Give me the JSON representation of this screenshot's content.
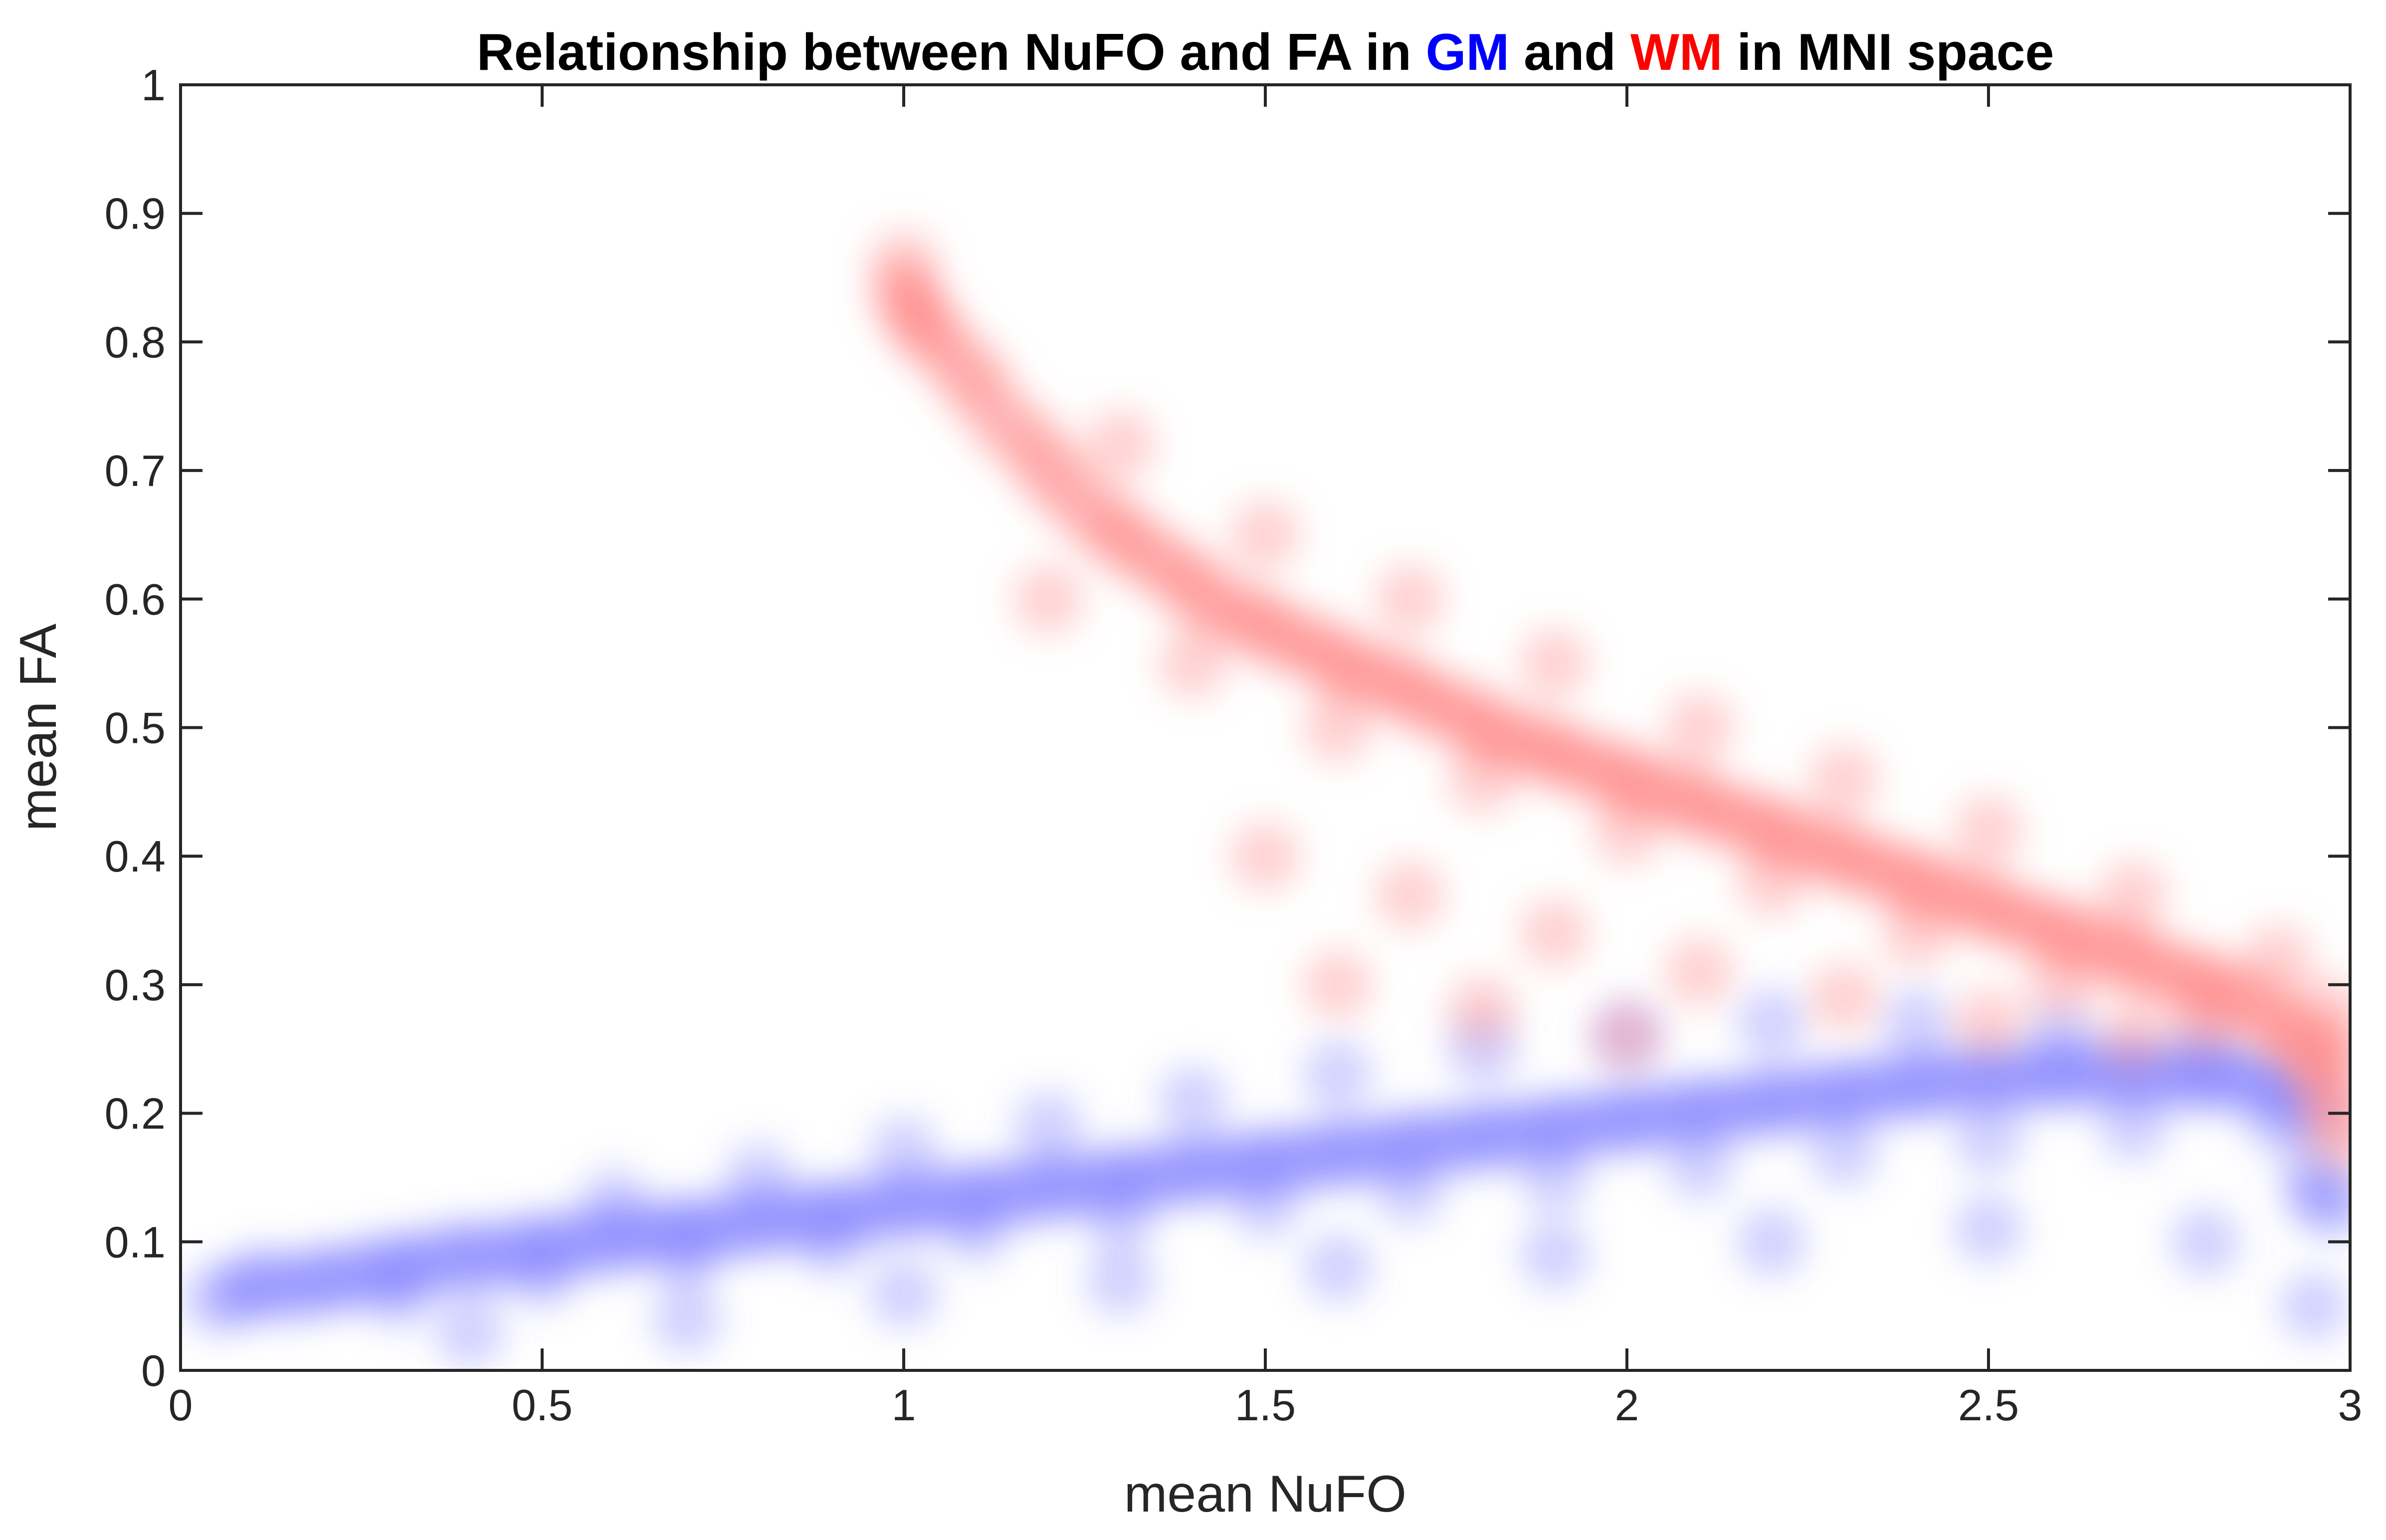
{
  "chart_data": {
    "type": "scatter",
    "title": {
      "parts": [
        {
          "text": "Relationship between NuFO and FA in ",
          "color": "#000000"
        },
        {
          "text": "GM",
          "color": "#0000ff"
        },
        {
          "text": " and ",
          "color": "#000000"
        },
        {
          "text": "WM",
          "color": "#ff0000"
        },
        {
          "text": " in MNI space",
          "color": "#000000"
        }
      ]
    },
    "xlabel": "mean NuFO",
    "ylabel": "mean FA",
    "xlim": [
      0,
      3
    ],
    "ylim": [
      0,
      1
    ],
    "x_ticks": [
      {
        "value": 0,
        "label": "0"
      },
      {
        "value": 0.5,
        "label": "0.5"
      },
      {
        "value": 1,
        "label": "1"
      },
      {
        "value": 1.5,
        "label": "1.5"
      },
      {
        "value": 2,
        "label": "2"
      },
      {
        "value": 2.5,
        "label": "2.5"
      },
      {
        "value": 3,
        "label": "3"
      }
    ],
    "y_ticks": [
      {
        "value": 0,
        "label": "0"
      },
      {
        "value": 0.1,
        "label": "0.1"
      },
      {
        "value": 0.2,
        "label": "0.2"
      },
      {
        "value": 0.3,
        "label": "0.3"
      },
      {
        "value": 0.4,
        "label": "0.4"
      },
      {
        "value": 0.5,
        "label": "0.5"
      },
      {
        "value": 0.6,
        "label": "0.6"
      },
      {
        "value": 0.7,
        "label": "0.7"
      },
      {
        "value": 0.8,
        "label": "0.8"
      },
      {
        "value": 0.9,
        "label": "0.9"
      },
      {
        "value": 1,
        "label": "1"
      }
    ],
    "grid": false,
    "series": [
      {
        "name": "GM",
        "color": "#7b7bff",
        "point_opacity": 0.05,
        "points": [
          [
            0.05,
            0.055
          ],
          [
            0.08,
            0.06
          ],
          [
            0.1,
            0.065
          ],
          [
            0.12,
            0.07
          ],
          [
            0.15,
            0.062
          ],
          [
            0.18,
            0.068
          ],
          [
            0.2,
            0.072
          ],
          [
            0.22,
            0.07
          ],
          [
            0.25,
            0.075
          ],
          [
            0.28,
            0.08
          ],
          [
            0.3,
            0.078
          ],
          [
            0.32,
            0.082
          ],
          [
            0.35,
            0.085
          ],
          [
            0.38,
            0.088
          ],
          [
            0.4,
            0.09
          ],
          [
            0.42,
            0.086
          ],
          [
            0.45,
            0.092
          ],
          [
            0.48,
            0.095
          ],
          [
            0.5,
            0.093
          ],
          [
            0.52,
            0.097
          ],
          [
            0.55,
            0.1
          ],
          [
            0.58,
            0.098
          ],
          [
            0.6,
            0.102
          ],
          [
            0.62,
            0.105
          ],
          [
            0.65,
            0.104
          ],
          [
            0.68,
            0.108
          ],
          [
            0.7,
            0.11
          ],
          [
            0.72,
            0.107
          ],
          [
            0.75,
            0.112
          ],
          [
            0.78,
            0.115
          ],
          [
            0.8,
            0.113
          ],
          [
            0.82,
            0.117
          ],
          [
            0.85,
            0.12
          ],
          [
            0.88,
            0.118
          ],
          [
            0.9,
            0.122
          ],
          [
            0.92,
            0.125
          ],
          [
            0.95,
            0.123
          ],
          [
            0.98,
            0.127
          ],
          [
            1.0,
            0.13
          ],
          [
            1.02,
            0.128
          ],
          [
            1.05,
            0.132
          ],
          [
            1.08,
            0.135
          ],
          [
            1.1,
            0.133
          ],
          [
            1.12,
            0.137
          ],
          [
            1.15,
            0.14
          ],
          [
            1.18,
            0.138
          ],
          [
            1.2,
            0.142
          ],
          [
            1.22,
            0.145
          ],
          [
            1.25,
            0.143
          ],
          [
            1.28,
            0.147
          ],
          [
            1.3,
            0.15
          ],
          [
            1.32,
            0.148
          ],
          [
            1.35,
            0.152
          ],
          [
            1.38,
            0.155
          ],
          [
            1.4,
            0.153
          ],
          [
            1.42,
            0.157
          ],
          [
            1.45,
            0.16
          ],
          [
            1.48,
            0.158
          ],
          [
            1.5,
            0.162
          ],
          [
            1.52,
            0.165
          ],
          [
            1.55,
            0.163
          ],
          [
            1.58,
            0.167
          ],
          [
            1.6,
            0.17
          ],
          [
            1.62,
            0.168
          ],
          [
            1.65,
            0.172
          ],
          [
            1.68,
            0.175
          ],
          [
            1.7,
            0.173
          ],
          [
            1.72,
            0.177
          ],
          [
            1.75,
            0.18
          ],
          [
            1.78,
            0.178
          ],
          [
            1.8,
            0.182
          ],
          [
            1.82,
            0.185
          ],
          [
            1.85,
            0.183
          ],
          [
            1.88,
            0.187
          ],
          [
            1.9,
            0.19
          ],
          [
            1.92,
            0.188
          ],
          [
            1.95,
            0.192
          ],
          [
            1.98,
            0.195
          ],
          [
            2.0,
            0.193
          ],
          [
            2.02,
            0.197
          ],
          [
            2.05,
            0.2
          ],
          [
            2.08,
            0.198
          ],
          [
            2.1,
            0.202
          ],
          [
            2.12,
            0.205
          ],
          [
            2.15,
            0.203
          ],
          [
            2.18,
            0.207
          ],
          [
            2.2,
            0.21
          ],
          [
            2.22,
            0.208
          ],
          [
            2.25,
            0.212
          ],
          [
            2.28,
            0.215
          ],
          [
            2.3,
            0.213
          ],
          [
            2.32,
            0.217
          ],
          [
            2.35,
            0.22
          ],
          [
            2.38,
            0.218
          ],
          [
            2.4,
            0.222
          ],
          [
            2.42,
            0.225
          ],
          [
            2.45,
            0.223
          ],
          [
            2.48,
            0.227
          ],
          [
            2.5,
            0.23
          ],
          [
            2.52,
            0.228
          ],
          [
            2.55,
            0.225
          ],
          [
            2.58,
            0.23
          ],
          [
            2.6,
            0.232
          ],
          [
            2.62,
            0.228
          ],
          [
            2.65,
            0.23
          ],
          [
            2.68,
            0.233
          ],
          [
            2.7,
            0.228
          ],
          [
            2.72,
            0.232
          ],
          [
            2.75,
            0.23
          ],
          [
            2.78,
            0.227
          ],
          [
            2.8,
            0.23
          ],
          [
            2.82,
            0.228
          ],
          [
            2.85,
            0.225
          ],
          [
            2.88,
            0.228
          ],
          [
            2.9,
            0.222
          ],
          [
            2.92,
            0.215
          ],
          [
            2.94,
            0.2
          ],
          [
            2.95,
            0.15
          ],
          [
            2.96,
            0.135
          ],
          [
            2.98,
            0.13
          ],
          [
            0.3,
            0.06
          ],
          [
            0.5,
            0.075
          ],
          [
            0.7,
            0.09
          ],
          [
            0.9,
            0.1
          ],
          [
            1.1,
            0.11
          ],
          [
            1.3,
            0.12
          ],
          [
            1.5,
            0.13
          ],
          [
            1.7,
            0.14
          ],
          [
            1.9,
            0.15
          ],
          [
            2.1,
            0.16
          ],
          [
            2.3,
            0.17
          ],
          [
            2.5,
            0.18
          ],
          [
            2.7,
            0.19
          ],
          [
            2.9,
            0.195
          ],
          [
            0.6,
            0.13
          ],
          [
            0.8,
            0.15
          ],
          [
            1.0,
            0.17
          ],
          [
            1.2,
            0.19
          ],
          [
            1.4,
            0.21
          ],
          [
            1.6,
            0.23
          ],
          [
            1.8,
            0.25
          ],
          [
            2.0,
            0.26
          ],
          [
            2.2,
            0.27
          ],
          [
            2.4,
            0.27
          ],
          [
            2.6,
            0.26
          ],
          [
            2.8,
            0.25
          ],
          [
            0.4,
            0.03
          ],
          [
            0.7,
            0.04
          ],
          [
            1.0,
            0.06
          ],
          [
            1.3,
            0.07
          ],
          [
            1.6,
            0.08
          ],
          [
            1.9,
            0.09
          ],
          [
            2.2,
            0.1
          ],
          [
            2.5,
            0.11
          ],
          [
            2.8,
            0.1
          ],
          [
            2.95,
            0.05
          ]
        ]
      },
      {
        "name": "WM",
        "color": "#ff7b7b",
        "point_opacity": 0.05,
        "points": [
          [
            1.0,
            0.86
          ],
          [
            1.0,
            0.84
          ],
          [
            1.01,
            0.83
          ],
          [
            1.02,
            0.82
          ],
          [
            1.03,
            0.81
          ],
          [
            1.05,
            0.8
          ],
          [
            1.08,
            0.78
          ],
          [
            1.1,
            0.77
          ],
          [
            1.12,
            0.75
          ],
          [
            1.15,
            0.73
          ],
          [
            1.18,
            0.72
          ],
          [
            1.2,
            0.7
          ],
          [
            1.22,
            0.69
          ],
          [
            1.25,
            0.67
          ],
          [
            1.28,
            0.66
          ],
          [
            1.3,
            0.65
          ],
          [
            1.32,
            0.64
          ],
          [
            1.35,
            0.63
          ],
          [
            1.38,
            0.62
          ],
          [
            1.4,
            0.61
          ],
          [
            1.42,
            0.6
          ],
          [
            1.45,
            0.59
          ],
          [
            1.48,
            0.585
          ],
          [
            1.5,
            0.58
          ],
          [
            1.52,
            0.57
          ],
          [
            1.55,
            0.565
          ],
          [
            1.58,
            0.56
          ],
          [
            1.6,
            0.55
          ],
          [
            1.62,
            0.545
          ],
          [
            1.65,
            0.54
          ],
          [
            1.68,
            0.535
          ],
          [
            1.7,
            0.53
          ],
          [
            1.72,
            0.52
          ],
          [
            1.75,
            0.515
          ],
          [
            1.78,
            0.51
          ],
          [
            1.8,
            0.5
          ],
          [
            1.82,
            0.495
          ],
          [
            1.85,
            0.49
          ],
          [
            1.88,
            0.485
          ],
          [
            1.9,
            0.48
          ],
          [
            1.92,
            0.475
          ],
          [
            1.95,
            0.47
          ],
          [
            1.98,
            0.465
          ],
          [
            2.0,
            0.46
          ],
          [
            2.02,
            0.455
          ],
          [
            2.05,
            0.45
          ],
          [
            2.08,
            0.445
          ],
          [
            2.1,
            0.44
          ],
          [
            2.12,
            0.435
          ],
          [
            2.15,
            0.43
          ],
          [
            2.18,
            0.425
          ],
          [
            2.2,
            0.42
          ],
          [
            2.22,
            0.415
          ],
          [
            2.25,
            0.41
          ],
          [
            2.28,
            0.405
          ],
          [
            2.3,
            0.4
          ],
          [
            2.32,
            0.395
          ],
          [
            2.35,
            0.39
          ],
          [
            2.38,
            0.385
          ],
          [
            2.4,
            0.38
          ],
          [
            2.42,
            0.375
          ],
          [
            2.45,
            0.37
          ],
          [
            2.48,
            0.365
          ],
          [
            2.5,
            0.36
          ],
          [
            2.52,
            0.355
          ],
          [
            2.55,
            0.35
          ],
          [
            2.58,
            0.345
          ],
          [
            2.6,
            0.34
          ],
          [
            2.62,
            0.335
          ],
          [
            2.65,
            0.33
          ],
          [
            2.68,
            0.325
          ],
          [
            2.7,
            0.32
          ],
          [
            2.72,
            0.315
          ],
          [
            2.75,
            0.31
          ],
          [
            2.78,
            0.305
          ],
          [
            2.8,
            0.3
          ],
          [
            2.82,
            0.295
          ],
          [
            2.85,
            0.29
          ],
          [
            2.88,
            0.28
          ],
          [
            2.9,
            0.27
          ],
          [
            2.92,
            0.26
          ],
          [
            2.94,
            0.25
          ],
          [
            2.96,
            0.24
          ],
          [
            2.97,
            0.22
          ],
          [
            2.98,
            0.2
          ],
          [
            2.99,
            0.18
          ],
          [
            2.98,
            0.25
          ],
          [
            2.97,
            0.28
          ],
          [
            1.2,
            0.6
          ],
          [
            1.4,
            0.55
          ],
          [
            1.6,
            0.5
          ],
          [
            1.8,
            0.46
          ],
          [
            2.0,
            0.42
          ],
          [
            2.2,
            0.38
          ],
          [
            2.4,
            0.34
          ],
          [
            2.6,
            0.3
          ],
          [
            2.8,
            0.27
          ],
          [
            1.3,
            0.72
          ],
          [
            1.5,
            0.65
          ],
          [
            1.7,
            0.6
          ],
          [
            1.9,
            0.55
          ],
          [
            2.1,
            0.5
          ],
          [
            2.3,
            0.46
          ],
          [
            2.5,
            0.42
          ],
          [
            2.7,
            0.37
          ],
          [
            2.9,
            0.32
          ],
          [
            1.5,
            0.4
          ],
          [
            1.7,
            0.37
          ],
          [
            1.9,
            0.34
          ],
          [
            2.1,
            0.31
          ],
          [
            2.3,
            0.29
          ],
          [
            2.5,
            0.27
          ],
          [
            2.7,
            0.26
          ],
          [
            1.6,
            0.3
          ],
          [
            1.8,
            0.28
          ],
          [
            2.0,
            0.26
          ]
        ]
      }
    ]
  }
}
